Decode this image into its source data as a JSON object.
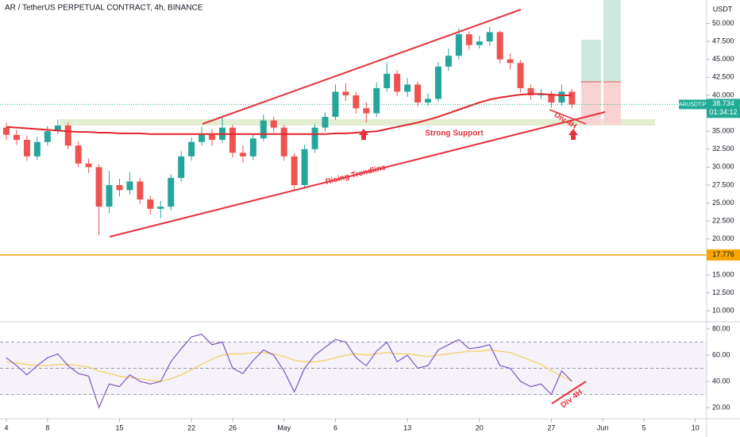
{
  "chart_data": {
    "type": "candlestick",
    "title": "AR / TetherUS PERPETUAL CONTRACT, 4h, BINANCE",
    "currency": "USDT",
    "x": [
      0,
      1,
      2,
      3,
      4,
      5,
      6,
      7,
      8,
      9,
      10,
      11,
      12,
      13,
      14,
      15,
      16,
      17,
      18,
      19,
      20,
      21,
      22,
      23,
      24,
      25,
      26,
      27,
      28,
      29,
      30,
      31,
      32,
      33,
      34,
      35,
      36,
      37,
      38,
      39,
      40,
      41,
      42,
      43,
      44,
      45,
      46,
      47,
      48,
      49,
      50,
      51,
      52,
      53,
      54,
      55
    ],
    "open": [
      35.5,
      34.5,
      33.8,
      31.5,
      33.5,
      35,
      35.8,
      33,
      30.5,
      30,
      24.5,
      27.5,
      26.8,
      28,
      25.5,
      24.2,
      24.5,
      28.5,
      31.5,
      33.5,
      34.5,
      33.8,
      35.5,
      32,
      31.5,
      34,
      36.5,
      35.5,
      31.5,
      27.5,
      32.5,
      35.5,
      37,
      40.5,
      40,
      38.2,
      37.5,
      41,
      43,
      40.5,
      41.5,
      39,
      39.5,
      44,
      45.5,
      48.5,
      47,
      47.5,
      48.8,
      45,
      44.5,
      41,
      40,
      40.2,
      39,
      40.5
    ],
    "high": [
      36.2,
      35.2,
      34.4,
      34.2,
      35.7,
      36.6,
      36.2,
      33.6,
      31.2,
      30.4,
      29.5,
      28.4,
      29.3,
      28.5,
      26.0,
      25.3,
      29.0,
      32.2,
      34.1,
      35.6,
      35.3,
      37.0,
      35.9,
      33.0,
      34.7,
      37.3,
      37.0,
      35.9,
      31.9,
      33.1,
      36.0,
      37.6,
      41.5,
      41.7,
      40.5,
      39.0,
      41.8,
      44.6,
      43.5,
      42.4,
      41.9,
      40.3,
      44.6,
      46.5,
      49.3,
      48.9,
      48.3,
      49.5,
      49.0,
      45.8,
      44.9,
      41.5,
      40.9,
      40.6,
      41.5,
      40.9
    ],
    "low": [
      33.8,
      33.1,
      30.9,
      31.0,
      33.0,
      34.6,
      32.5,
      30.0,
      29.2,
      20.5,
      23.6,
      25.9,
      26.2,
      24.9,
      23.4,
      22.9,
      24.0,
      28.0,
      30.9,
      33.0,
      33.0,
      33.4,
      31.3,
      30.6,
      31.0,
      33.6,
      34.8,
      30.9,
      26.6,
      27.0,
      32.0,
      35.0,
      36.6,
      39.2,
      37.5,
      36.2,
      37.0,
      40.5,
      39.9,
      39.8,
      38.4,
      38.5,
      39.1,
      43.4,
      45.0,
      46.3,
      46.5,
      46.9,
      44.4,
      43.6,
      40.4,
      39.4,
      39.5,
      38.3,
      38.6,
      38.2
    ],
    "close": [
      34.5,
      33.8,
      31.5,
      33.5,
      35,
      35.8,
      33,
      30.5,
      30,
      24.5,
      27.5,
      26.8,
      28,
      25.5,
      24.2,
      24.5,
      28.5,
      31.5,
      33.5,
      34.5,
      33.8,
      35.5,
      32,
      31.5,
      34,
      36.5,
      35.5,
      31.5,
      27.5,
      32.5,
      35.5,
      37,
      40.5,
      40,
      38.2,
      37.5,
      41,
      43,
      40.5,
      41.5,
      39,
      39.5,
      44,
      45.5,
      48.5,
      47,
      47.5,
      48.8,
      45,
      44.5,
      41,
      40,
      40.2,
      39,
      40.5,
      38.7
    ],
    "up_color": "#26a69a",
    "down_color": "#ef5350",
    "moving_average": {
      "color": "#e0262b",
      "values": [
        35.6,
        35.5,
        35.4,
        35.3,
        35.2,
        35.1,
        35.0,
        34.9,
        34.9,
        34.8,
        34.8,
        34.7,
        34.7,
        34.7,
        34.6,
        34.6,
        34.6,
        34.6,
        34.6,
        34.6,
        34.6,
        34.6,
        34.6,
        34.6,
        34.6,
        34.6,
        34.6,
        34.6,
        34.6,
        34.6,
        34.6,
        34.6,
        34.7,
        34.7,
        34.8,
        34.9,
        35.0,
        35.3,
        35.6,
        35.9,
        36.2,
        36.6,
        37.0,
        37.5,
        38.0,
        38.5,
        39.0,
        39.4,
        39.7,
        39.9,
        40.1,
        40.2,
        40.2,
        40.1,
        40.0,
        40.0
      ]
    },
    "xlim": [
      -0.62,
      68.1
    ],
    "xticks": [
      {
        "value": 0,
        "label": "4"
      },
      {
        "value": 4,
        "label": "8"
      },
      {
        "value": 11,
        "label": "15"
      },
      {
        "value": 18,
        "label": "22"
      },
      {
        "value": 22,
        "label": "26"
      },
      {
        "value": 27,
        "label": "May"
      },
      {
        "value": 32,
        "label": "6"
      },
      {
        "value": 39,
        "label": "13"
      },
      {
        "value": 46,
        "label": "20"
      },
      {
        "value": 53,
        "label": "27"
      },
      {
        "value": 58,
        "label": "Jun"
      },
      {
        "value": 62,
        "label": "5"
      },
      {
        "value": 67,
        "label": "10"
      }
    ],
    "ylim": [
      8.47,
      53.27
    ],
    "yticks": [
      {
        "value": 10,
        "label": "10.000"
      },
      {
        "value": 12.5,
        "label": "12.500"
      },
      {
        "value": 15,
        "label": "15.000"
      },
      {
        "value": 20,
        "label": "20.000"
      },
      {
        "value": 22.5,
        "label": "22.500"
      },
      {
        "value": 25,
        "label": "25.000"
      },
      {
        "value": 27.5,
        "label": "27.500"
      },
      {
        "value": 30,
        "label": "30.000"
      },
      {
        "value": 32.5,
        "label": "32.500"
      },
      {
        "value": 35,
        "label": "35.000"
      },
      {
        "value": 40,
        "label": "40.000"
      },
      {
        "value": 42.5,
        "label": "42.500"
      },
      {
        "value": 45,
        "label": "45.000"
      },
      {
        "value": 47.5,
        "label": "47.500"
      },
      {
        "value": 50,
        "label": "50.000"
      }
    ],
    "horizontal_line": {
      "value": 17.776,
      "color": "#f7a600"
    },
    "last_price": {
      "symbol": "ARUSDT.P",
      "value": 38.734,
      "countdown": "01:34:12",
      "color": "#22ab94"
    },
    "annotations": {
      "support": "Strong Support",
      "trendline": "Rising Trendline",
      "divergence_price": "Div 4H",
      "divergence_rsi": "Div 4H"
    },
    "rsi": {
      "values": [
        58,
        52,
        45,
        52,
        58,
        61,
        52,
        46,
        44,
        20,
        38,
        36,
        45,
        40,
        38,
        40,
        55,
        65,
        74,
        76,
        68,
        70,
        50,
        46,
        56,
        64,
        60,
        48,
        32,
        50,
        60,
        66,
        72,
        70,
        58,
        52,
        63,
        70,
        55,
        60,
        50,
        52,
        64,
        68,
        72,
        65,
        66,
        68,
        52,
        50,
        40,
        36,
        38,
        30,
        48,
        40
      ],
      "color": "#7e57c2",
      "ma_values": [
        55,
        54,
        53,
        52,
        52,
        53,
        53,
        52,
        51,
        48,
        46,
        44,
        43,
        42,
        41,
        40,
        42,
        45,
        49,
        53,
        57,
        60,
        61,
        61,
        62,
        62,
        61,
        59,
        56,
        55,
        55,
        56,
        58,
        60,
        61,
        60,
        61,
        62,
        61,
        61,
        60,
        59,
        60,
        61,
        62,
        63,
        63,
        64,
        63,
        62,
        59,
        56,
        53,
        48,
        44,
        40
      ],
      "ma_color": "#f2d15c",
      "ylim": [
        12.7,
        85.5
      ],
      "yticks": [
        {
          "value": 20,
          "label": "20.00"
        },
        {
          "value": 40,
          "label": "40.00"
        },
        {
          "value": 60,
          "label": "60.00"
        },
        {
          "value": 80,
          "label": "80.00"
        }
      ],
      "bands": [
        30,
        50,
        70
      ]
    }
  }
}
